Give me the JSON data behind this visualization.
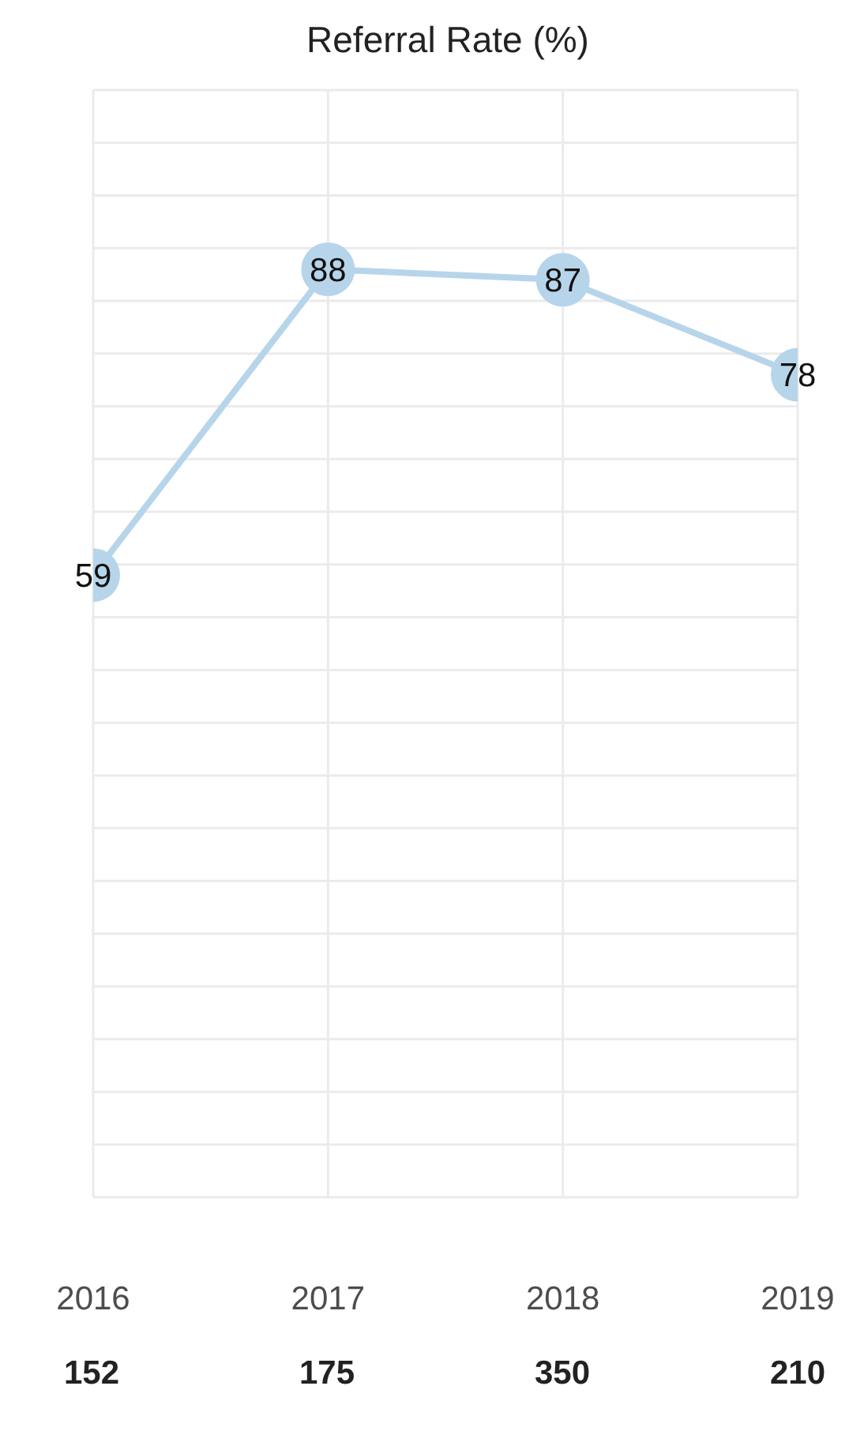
{
  "chart_data": {
    "type": "line",
    "title": "Referral Rate (%)",
    "categories": [
      "2016",
      "2017",
      "2018",
      "2019"
    ],
    "series": [
      {
        "color": "#b7d5ea",
        "values": [
          59,
          88,
          87,
          78
        ]
      }
    ],
    "ylim": [
      0,
      105
    ],
    "grid": true,
    "marker": "circle",
    "line_style": "solid",
    "data_labels": true,
    "tick_labels": "x",
    "legend": false,
    "annotations": [
      "152",
      "175",
      "350",
      "210"
    ]
  }
}
